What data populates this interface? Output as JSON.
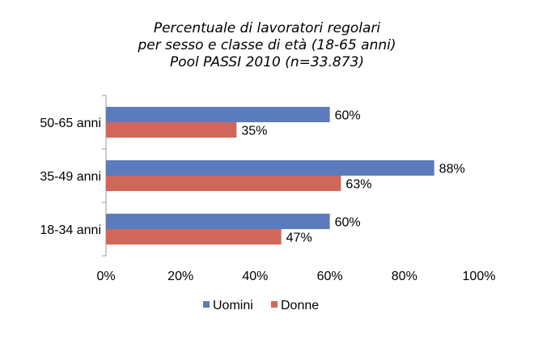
{
  "chart_data": {
    "type": "bar",
    "orientation": "horizontal",
    "title": [
      "Percentuale di lavoratori regolari",
      "per sesso e classe di età (18-65 anni)",
      "Pool PASSI 2010 (n=33.873)"
    ],
    "categories": [
      "50-65 anni",
      "35-49 anni",
      "18-34 anni"
    ],
    "series": [
      {
        "name": "Uomini",
        "color": "#5b7bbd",
        "values": [
          60,
          88,
          60
        ],
        "labels": [
          "60%",
          "88%",
          "60%"
        ]
      },
      {
        "name": "Donne",
        "color": "#d1675a",
        "values": [
          35,
          63,
          47
        ],
        "labels": [
          "35%",
          "63%",
          "47%"
        ]
      }
    ],
    "xlim": [
      0,
      100
    ],
    "xticks": [
      "0%",
      "20%",
      "40%",
      "60%",
      "80%",
      "100%"
    ],
    "grid": false,
    "legend_position": "bottom"
  }
}
